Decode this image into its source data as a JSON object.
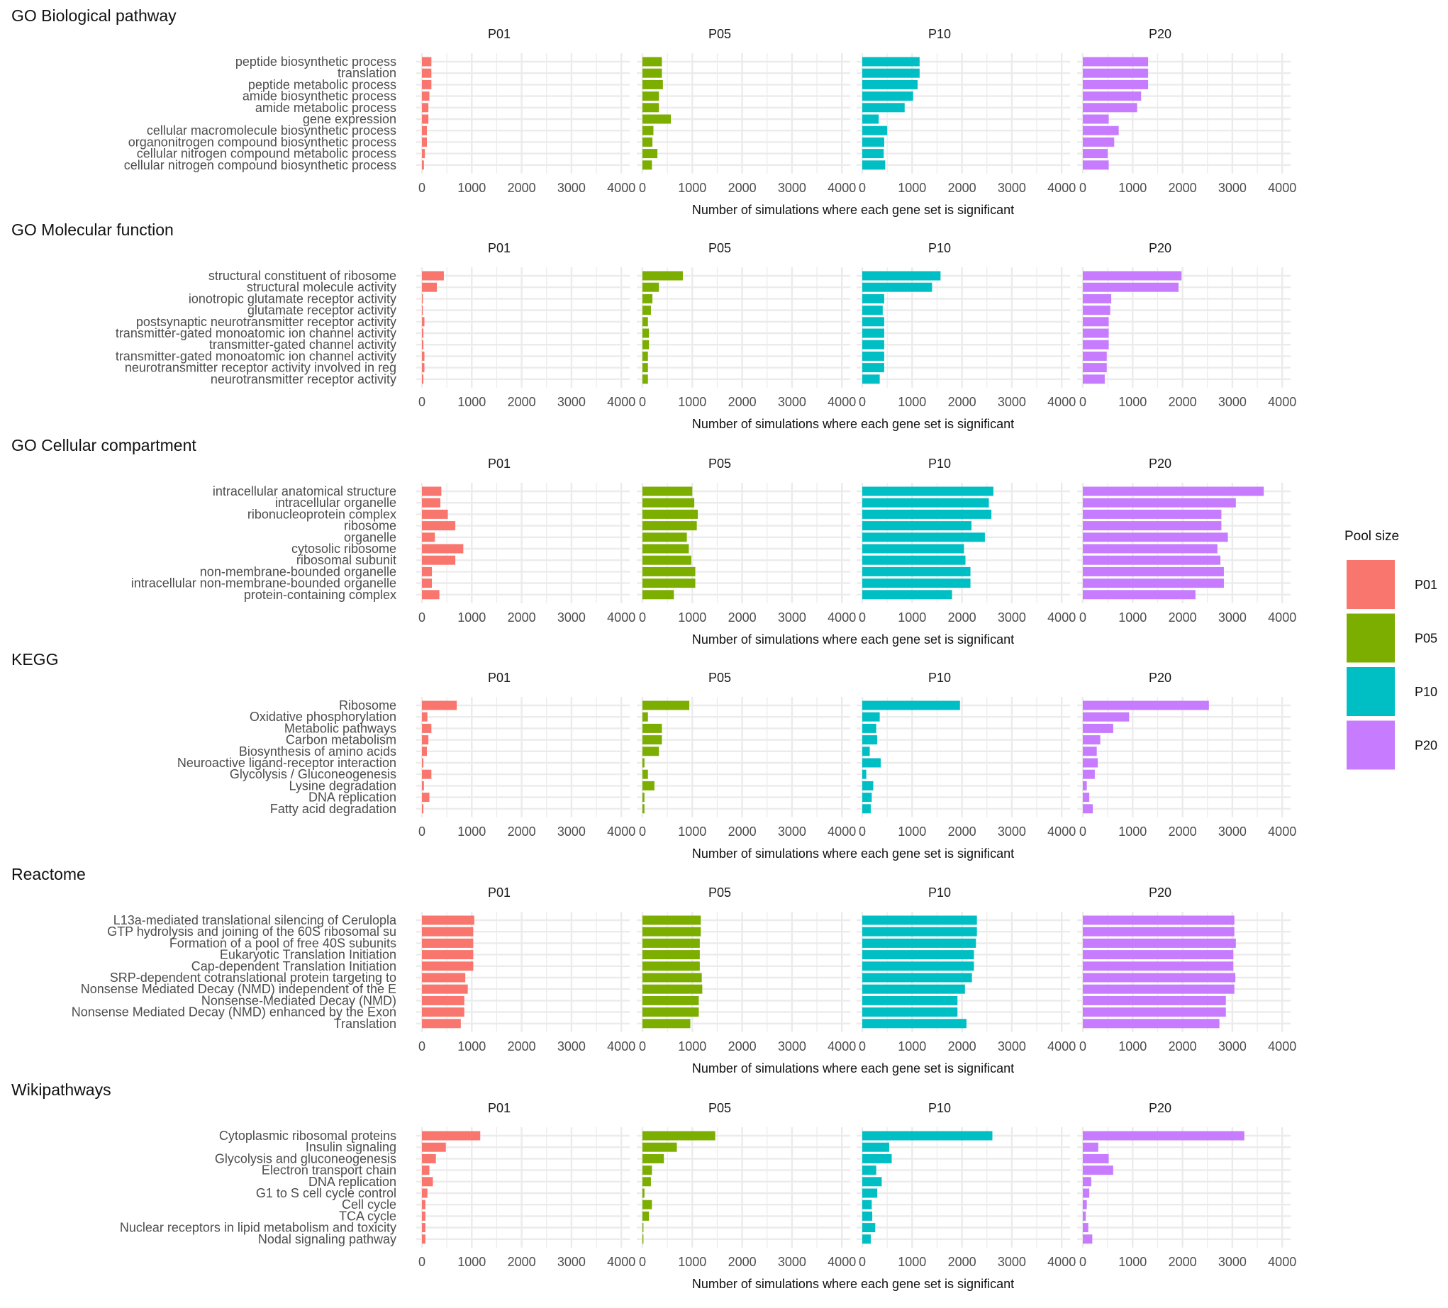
{
  "chart_data": {
    "type": "bar",
    "orientation": "horizontal",
    "facets": [
      "P01",
      "P05",
      "P10",
      "P20"
    ],
    "xlabel": "Number of simulations where each gene set is significant",
    "xticks": [
      "0",
      "1000",
      "2000",
      "3000",
      "4000"
    ],
    "xlim": [
      0,
      4000
    ],
    "grid": true,
    "legend": {
      "title": "Pool size",
      "placement": "right",
      "entries": [
        {
          "label": "P01",
          "color": "#F8766D"
        },
        {
          "label": "P05",
          "color": "#7CAE00"
        },
        {
          "label": "P10",
          "color": "#00BFC4"
        },
        {
          "label": "P20",
          "color": "#C77CFF"
        }
      ]
    },
    "panels": [
      {
        "title": "GO Biological pathway",
        "categories": [
          "peptide biosynthetic process",
          "translation",
          "peptide metabolic process",
          "amide biosynthetic process",
          "amide metabolic process",
          "gene expression",
          "cellular macromolecule biosynthetic process",
          "organonitrogen compound biosynthetic process",
          "cellular nitrogen compound metabolic process",
          "cellular nitrogen compound biosynthetic process"
        ],
        "series": [
          {
            "name": "P01",
            "values": [
              190,
              190,
              190,
              150,
              130,
              130,
              100,
              100,
              60,
              40
            ]
          },
          {
            "name": "P05",
            "values": [
              390,
              390,
              410,
              330,
              330,
              570,
              220,
              200,
              300,
              190
            ]
          },
          {
            "name": "P10",
            "values": [
              1150,
              1150,
              1110,
              1020,
              850,
              330,
              500,
              440,
              430,
              460
            ]
          },
          {
            "name": "P20",
            "values": [
              1310,
              1310,
              1310,
              1170,
              1090,
              520,
              720,
              630,
              500,
              520
            ]
          }
        ]
      },
      {
        "title": "GO Molecular function",
        "categories": [
          "structural constituent of ribosome",
          "structural molecule activity",
          "ionotropic glutamate receptor activity",
          "glutamate receptor activity",
          "postsynaptic neurotransmitter receptor activity",
          "transmitter-gated monoatomic ion channel activity",
          "transmitter-gated channel activity",
          "transmitter-gated monoatomic ion channel activity ",
          "neurotransmitter receptor activity involved in reg",
          "neurotransmitter receptor activity"
        ],
        "series": [
          {
            "name": "P01",
            "values": [
              440,
              300,
              20,
              20,
              50,
              30,
              30,
              50,
              50,
              30
            ]
          },
          {
            "name": "P05",
            "values": [
              810,
              330,
              200,
              170,
              110,
              130,
              130,
              110,
              110,
              110
            ]
          },
          {
            "name": "P10",
            "values": [
              1570,
              1400,
              440,
              410,
              440,
              440,
              440,
              440,
              440,
              350
            ]
          },
          {
            "name": "P20",
            "values": [
              1980,
              1920,
              570,
              550,
              520,
              520,
              520,
              480,
              480,
              440
            ]
          }
        ]
      },
      {
        "title": "GO Cellular compartment",
        "categories": [
          "intracellular anatomical structure",
          "intracellular organelle",
          "ribonucleoprotein complex",
          "ribosome",
          "organelle",
          "cytosolic ribosome",
          "ribosomal subunit",
          "non-membrane-bounded organelle",
          "intracellular non-membrane-bounded organelle",
          "protein-containing complex"
        ],
        "series": [
          {
            "name": "P01",
            "values": [
              390,
              370,
              520,
              670,
              260,
              830,
              670,
              200,
              200,
              350
            ]
          },
          {
            "name": "P05",
            "values": [
              1000,
              1040,
              1110,
              1090,
              890,
              930,
              980,
              1060,
              1060,
              630
            ]
          },
          {
            "name": "P10",
            "values": [
              2630,
              2540,
              2590,
              2190,
              2460,
              2040,
              2070,
              2170,
              2170,
              1800
            ]
          },
          {
            "name": "P20",
            "values": [
              3630,
              3070,
              2780,
              2780,
              2910,
              2700,
              2760,
              2830,
              2830,
              2260
            ]
          }
        ]
      },
      {
        "title": "KEGG",
        "categories": [
          "Ribosome",
          "Oxidative phosphorylation",
          "Metabolic pathways",
          "Carbon metabolism",
          "Biosynthesis of amino acids",
          "Neuroactive ligand-receptor interaction",
          "Glycolysis / Gluconeogenesis",
          "Lysine degradation",
          "DNA replication",
          "Fatty acid degradation"
        ],
        "series": [
          {
            "name": "P01",
            "values": [
              700,
              110,
              190,
              130,
              100,
              30,
              190,
              40,
              150,
              30
            ]
          },
          {
            "name": "P05",
            "values": [
              940,
              110,
              390,
              390,
              330,
              40,
              110,
              240,
              40,
              40
            ]
          },
          {
            "name": "P10",
            "values": [
              1960,
              350,
              280,
              300,
              150,
              370,
              80,
              220,
              190,
              170
            ]
          },
          {
            "name": "P20",
            "values": [
              2530,
              930,
              610,
              350,
              280,
              300,
              240,
              80,
              130,
              200
            ]
          }
        ]
      },
      {
        "title": "Reactome",
        "categories": [
          "L13a-mediated translational silencing of Ceruloplа",
          "GTP hydrolysis and joining of the 60S ribosomal su",
          "Formation of a pool of free 40S subunits",
          "Eukaryotic Translation Initiation",
          "Cap-dependent Translation Initiation",
          "SRP-dependent cotranslational protein targeting to",
          "Nonsense Mediated Decay (NMD) independent of the E",
          "Nonsense-Mediated Decay (NMD)",
          "Nonsense Mediated Decay (NMD) enhanced by the Exon",
          "Translation"
        ],
        "series": [
          {
            "name": "P01",
            "values": [
              1050,
              1030,
              1030,
              1030,
              1030,
              870,
              920,
              850,
              850,
              780
            ]
          },
          {
            "name": "P05",
            "values": [
              1170,
              1170,
              1150,
              1150,
              1150,
              1190,
              1200,
              1130,
              1130,
              960
            ]
          },
          {
            "name": "P10",
            "values": [
              2300,
              2300,
              2280,
              2240,
              2240,
              2200,
              2060,
              1910,
              1910,
              2090
            ]
          },
          {
            "name": "P20",
            "values": [
              3040,
              3040,
              3070,
              3020,
              3020,
              3060,
              3040,
              2870,
              2870,
              2740
            ]
          }
        ]
      },
      {
        "title": "Wikipathways",
        "categories": [
          "Cytoplasmic ribosomal proteins",
          "Insulin signaling",
          "Glycolysis and gluconeogenesis",
          "Electron transport chain",
          "DNA replication",
          "G1 to S cell cycle control",
          "Cell cycle",
          "TCA cycle",
          "Nuclear receptors in lipid metabolism and toxicity",
          "Nodal signaling pathway"
        ],
        "series": [
          {
            "name": "P01",
            "values": [
              1170,
              480,
              280,
              150,
              220,
              110,
              70,
              70,
              70,
              70
            ]
          },
          {
            "name": "P05",
            "values": [
              1460,
              690,
              430,
              190,
              170,
              40,
              190,
              130,
              20,
              20
            ]
          },
          {
            "name": "P10",
            "values": [
              2610,
              540,
              590,
              280,
              390,
              300,
              190,
              200,
              260,
              170
            ]
          },
          {
            "name": "P20",
            "values": [
              3240,
              310,
              520,
              610,
              170,
              130,
              80,
              60,
              110,
              190
            ]
          }
        ]
      }
    ]
  }
}
